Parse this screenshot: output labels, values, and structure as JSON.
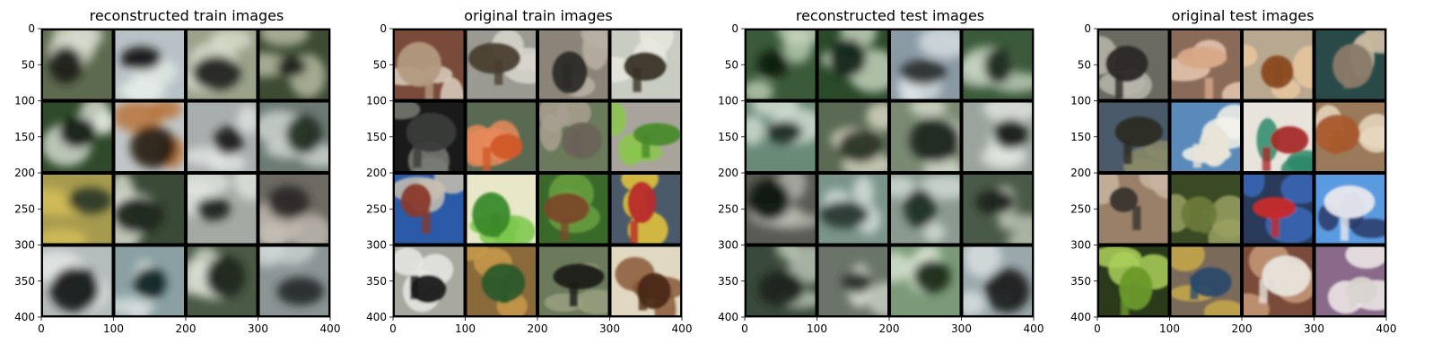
{
  "chart_data": [
    {
      "type": "image-grid",
      "title": "reconstructed train images",
      "xlim": [
        0,
        400
      ],
      "ylim": [
        400,
        0
      ],
      "xticks": [
        "0",
        "100",
        "200",
        "300",
        "400"
      ],
      "yticks": [
        "0",
        "50",
        "100",
        "150",
        "200",
        "250",
        "300",
        "350",
        "400"
      ],
      "grid_rows": 4,
      "grid_cols": 4,
      "style": "blurry",
      "tiles": [
        {
          "bg": "#5e6a4f",
          "blob": "#1a1e18",
          "hl": "#d8dccf"
        },
        {
          "bg": "#b8c2c6",
          "blob": "#151618",
          "hl": "#e6ece8"
        },
        {
          "bg": "#9aa28a",
          "blob": "#202320",
          "hl": "#dfe3d4"
        },
        {
          "bg": "#3d4b33",
          "blob": "#1b2016",
          "hl": "#c4c9b0"
        },
        {
          "bg": "#2f4a2a",
          "blob": "#122012",
          "hl": "#e9eee4"
        },
        {
          "bg": "#c0c6c8",
          "blob": "#2a2118",
          "hl": "#b86a2a"
        },
        {
          "bg": "#a8adad",
          "blob": "#1d1f1f",
          "hl": "#e4e8e6"
        },
        {
          "bg": "#6c7a74",
          "blob": "#243024",
          "hl": "#d9dfdb"
        },
        {
          "bg": "#a69a4e",
          "blob": "#2d3a28",
          "hl": "#d9c25a"
        },
        {
          "bg": "#3a4a36",
          "blob": "#1b2318",
          "hl": "#e9ece0"
        },
        {
          "bg": "#a2aaa3",
          "blob": "#1f231f",
          "hl": "#e3e8e2"
        },
        {
          "bg": "#6c6a62",
          "blob": "#2a2826",
          "hl": "#c8c2b8"
        },
        {
          "bg": "#b5bcbc",
          "blob": "#161818",
          "hl": "#e8ecea"
        },
        {
          "bg": "#8aa0a2",
          "blob": "#0f2422",
          "hl": "#d9e1e0"
        },
        {
          "bg": "#4a5a45",
          "blob": "#1a2218",
          "hl": "#dce2d6"
        },
        {
          "bg": "#8b9595",
          "blob": "#262a2a",
          "hl": "#cfd6d5"
        }
      ]
    },
    {
      "type": "image-grid",
      "title": "original train images",
      "xlim": [
        0,
        400
      ],
      "ylim": [
        400,
        0
      ],
      "xticks": [
        "0",
        "100",
        "200",
        "300",
        "400"
      ],
      "yticks": [
        "0",
        "50",
        "100",
        "150",
        "200",
        "250",
        "300",
        "350",
        "400"
      ],
      "grid_rows": 4,
      "grid_cols": 4,
      "style": "photo",
      "tiles": [
        {
          "bg": "#7a4a3a",
          "blob": "#b29a7e",
          "hl": "#dcd0c0"
        },
        {
          "bg": "#9a9a92",
          "blob": "#4a3e30",
          "hl": "#d8d6cc"
        },
        {
          "bg": "#8c8478",
          "blob": "#2c2a28",
          "hl": "#b8b0a2"
        },
        {
          "bg": "#c8ccc2",
          "blob": "#3a3226",
          "hl": "#e8e8e0"
        },
        {
          "bg": "#1a1a1a",
          "blob": "#3a3c3a",
          "hl": "#7a7c74"
        },
        {
          "bg": "#5a6a52",
          "blob": "#d0582a",
          "hl": "#e88a5a"
        },
        {
          "bg": "#6a7a5a",
          "blob": "#6a6258",
          "hl": "#a8a090"
        },
        {
          "bg": "#a8a49c",
          "blob": "#4a8a2a",
          "hl": "#8ac84a"
        },
        {
          "bg": "#2a5aa8",
          "blob": "#8a3a2a",
          "hl": "#c8c0b0"
        },
        {
          "bg": "#e8e8c8",
          "blob": "#3a8a2a",
          "hl": "#7ac84a"
        },
        {
          "bg": "#3a6a2a",
          "blob": "#7a4a2a",
          "hl": "#6aa040"
        },
        {
          "bg": "#4a5a6a",
          "blob": "#b82a2a",
          "hl": "#e8c83a"
        },
        {
          "bg": "#a8a8a0",
          "blob": "#1a1a1a",
          "hl": "#e8e8e4"
        },
        {
          "bg": "#8a6a3a",
          "blob": "#2a5a2a",
          "hl": "#c89a4a"
        },
        {
          "bg": "#6a7a5a",
          "blob": "#1a1a18",
          "hl": "#9aa080"
        },
        {
          "bg": "#e0d8c0",
          "blob": "#4a2a18",
          "hl": "#8a5a38"
        }
      ]
    },
    {
      "type": "image-grid",
      "title": "reconstructed test images",
      "xlim": [
        0,
        400
      ],
      "ylim": [
        400,
        0
      ],
      "xticks": [
        "0",
        "100",
        "200",
        "300",
        "400"
      ],
      "yticks": [
        "0",
        "50",
        "100",
        "150",
        "200",
        "250",
        "300",
        "350",
        "400"
      ],
      "grid_rows": 4,
      "grid_cols": 4,
      "style": "blurry",
      "tiles": [
        {
          "bg": "#3a5a3a",
          "blob": "#0f1a10",
          "hl": "#c8d8c0"
        },
        {
          "bg": "#2a4a2a",
          "blob": "#15261a",
          "hl": "#d8e4d0"
        },
        {
          "bg": "#8a9aa4",
          "blob": "#2a3030",
          "hl": "#dfe6e8"
        },
        {
          "bg": "#3a5a3a",
          "blob": "#1a2a1a",
          "hl": "#cdd8c8"
        },
        {
          "bg": "#6a8a78",
          "blob": "#1a2a22",
          "hl": "#dce6dc"
        },
        {
          "bg": "#5a6a54",
          "blob": "#2a3424",
          "hl": "#e4e2cc"
        },
        {
          "bg": "#7a8a72",
          "blob": "#1a221a",
          "hl": "#dfe4d6"
        },
        {
          "bg": "#9aa49c",
          "blob": "#141a16",
          "hl": "#e6eae4"
        },
        {
          "bg": "#5a5a54",
          "blob": "#121412",
          "hl": "#bcbfb6"
        },
        {
          "bg": "#7a948a",
          "blob": "#2a3a34",
          "hl": "#e0e8e4"
        },
        {
          "bg": "#8a9a90",
          "blob": "#203024",
          "hl": "#d8e2dc"
        },
        {
          "bg": "#4a5a48",
          "blob": "#1a221a",
          "hl": "#c8d0c0"
        },
        {
          "bg": "#3a4a3a",
          "blob": "#1a241a",
          "hl": "#c8d4c4"
        },
        {
          "bg": "#6a7468",
          "blob": "#2a302a",
          "hl": "#d4dace"
        },
        {
          "bg": "#7a9a78",
          "blob": "#1a2a18",
          "hl": "#e0ead8"
        },
        {
          "bg": "#9aa8ac",
          "blob": "#1a1e20",
          "hl": "#e0e6e6"
        }
      ]
    },
    {
      "type": "image-grid",
      "title": "original test images",
      "xlim": [
        0,
        400
      ],
      "ylim": [
        400,
        0
      ],
      "xticks": [
        "0",
        "100",
        "200",
        "300",
        "400"
      ],
      "yticks": [
        "0",
        "50",
        "100",
        "150",
        "200",
        "250",
        "300",
        "350",
        "400"
      ],
      "grid_rows": 4,
      "grid_cols": 4,
      "style": "photo",
      "tiles": [
        {
          "bg": "#6a6a60",
          "blob": "#2a2826",
          "hl": "#b8b6ac"
        },
        {
          "bg": "#8a6a58",
          "blob": "#d8a888",
          "hl": "#e8c8b0"
        },
        {
          "bg": "#b8a890",
          "blob": "#8a4a20",
          "hl": "#e8c8a0"
        },
        {
          "bg": "#2a4a4a",
          "blob": "#8a7a68",
          "hl": "#c8b8a0"
        },
        {
          "bg": "#4a5a6a",
          "blob": "#2a2a22",
          "hl": "#8a8a6a"
        },
        {
          "bg": "#5a8aba",
          "blob": "#e8e4d8",
          "hl": "#f4f2ea"
        },
        {
          "bg": "#e8e4dc",
          "blob": "#a82a2a",
          "hl": "#2a8a6a"
        },
        {
          "bg": "#9a7a5a",
          "blob": "#a85a2a",
          "hl": "#e8d8c0"
        },
        {
          "bg": "#9a8068",
          "blob": "#3a3430",
          "hl": "#c8b4a0"
        },
        {
          "bg": "#3a4a24",
          "blob": "#6a7a3a",
          "hl": "#9aa060"
        },
        {
          "bg": "#2a3a5a",
          "blob": "#c82a2a",
          "hl": "#3a6ab8"
        },
        {
          "bg": "#5a9ae0",
          "blob": "#e8e8ee",
          "hl": "#2a3a6a"
        },
        {
          "bg": "#2a3a1a",
          "blob": "#6a9a2a",
          "hl": "#aad05a"
        },
        {
          "bg": "#7a6a5a",
          "blob": "#2a4a6a",
          "hl": "#c8a848"
        },
        {
          "bg": "#7a4a3a",
          "blob": "#e8e4dc",
          "hl": "#c89a7a"
        },
        {
          "bg": "#8a6a8a",
          "blob": "#d8d4d0",
          "hl": "#f0ecea"
        }
      ]
    }
  ]
}
